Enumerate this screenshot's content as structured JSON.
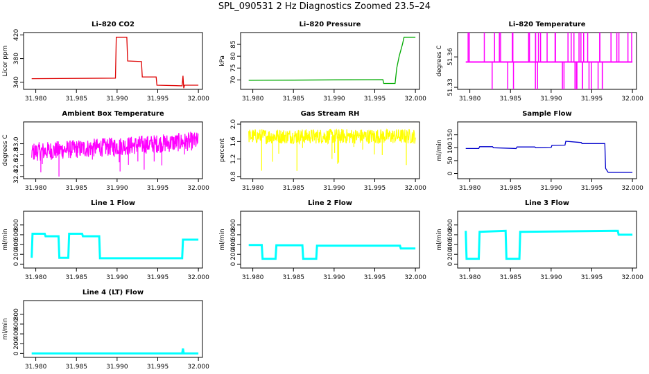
{
  "figure": {
    "title": "SPL_090531  2 Hz Diagnostics Zoomed 23.5–24"
  },
  "chart_data": [
    {
      "type": "line",
      "title": "Li–820 CO2",
      "ylabel": "Licor ppm",
      "color": "#dd0000",
      "xlim": [
        31.9785,
        32.0005
      ],
      "ylim": [
        328,
        424
      ],
      "xticks": [
        "31.980",
        "31.985",
        "31.990",
        "31.995",
        "32.000"
      ],
      "xtick_values": [
        31.98,
        31.985,
        31.99,
        31.995,
        32.0
      ],
      "yticks": [
        "340",
        "380",
        "420"
      ],
      "ytick_values": [
        340,
        380,
        420
      ],
      "series": [
        {
          "x": [
            31.9795,
            31.9898,
            31.9899,
            31.9912,
            31.9913,
            31.993,
            31.9931,
            31.9948,
            31.9949,
            31.998,
            31.9981,
            31.9982,
            31.9983,
            32.0
          ],
          "y": [
            346,
            347,
            416,
            416,
            376,
            375,
            349,
            349,
            335,
            334,
            351,
            330,
            335,
            335
          ]
        }
      ]
    },
    {
      "type": "line",
      "title": "Li–820 Pressure",
      "ylabel": "kPa",
      "color": "#00aa00",
      "xlim": [
        31.9785,
        32.0005
      ],
      "ylim": [
        66,
        90
      ],
      "xticks": [
        "31.980",
        "31.985",
        "31.990",
        "31.995",
        "32.000"
      ],
      "xtick_values": [
        31.98,
        31.985,
        31.99,
        31.995,
        32.0
      ],
      "yticks": [
        "70",
        "75",
        "80",
        "85"
      ],
      "ytick_values": [
        70,
        75,
        80,
        85
      ],
      "series": [
        {
          "x": [
            31.9795,
            31.985,
            31.99,
            31.996,
            31.9961,
            31.9975,
            31.9977,
            31.998,
            31.9984,
            31.9986,
            32.0
          ],
          "y": [
            69.8,
            69.9,
            70.0,
            70.1,
            68.5,
            68.5,
            75,
            80,
            85,
            88,
            88
          ]
        }
      ]
    },
    {
      "type": "line",
      "title": "Li–820 Temperature",
      "ylabel": "degrees C",
      "color": "#ff00ff",
      "xlim": [
        31.9785,
        32.0005
      ],
      "ylim": [
        51.328,
        51.384
      ],
      "xticks": [
        "31.980",
        "31.985",
        "31.990",
        "31.995",
        "32.000"
      ],
      "xtick_values": [
        31.98,
        31.985,
        31.99,
        31.995,
        32.0
      ],
      "yticks": [
        "51.33",
        "51.36"
      ],
      "ytick_values": [
        51.33,
        51.36
      ],
      "series": [
        {
          "x": [
            31.9795,
            32.0
          ],
          "y": [
            51.355,
            51.355
          ]
        }
      ]
    },
    {
      "type": "line",
      "title": "Ambient Box Temperature",
      "ylabel": "degrees C",
      "color": "#ff00ff",
      "xlim": [
        31.9785,
        32.0005
      ],
      "ylim": [
        32.36,
        33.4
      ],
      "xticks": [
        "31.980",
        "31.985",
        "31.990",
        "31.995",
        "32.000"
      ],
      "xtick_values": [
        31.98,
        31.985,
        31.99,
        31.995,
        32.0
      ],
      "yticks": [
        "32.4",
        "32.6",
        "32.8",
        "33.0"
      ],
      "ytick_values": [
        32.4,
        32.6,
        32.8,
        33.0
      ],
      "series": [
        {
          "x": [
            31.9795,
            31.985,
            31.99,
            31.995,
            32.0
          ],
          "y": [
            32.85,
            32.9,
            32.95,
            33.0,
            33.05
          ]
        }
      ]
    },
    {
      "type": "line",
      "title": "Gas Stream RH",
      "ylabel": "percent",
      "color": "#ffff00",
      "xlim": [
        31.9785,
        32.0005
      ],
      "ylim": [
        0.75,
        2.05
      ],
      "xticks": [
        "31.980",
        "31.985",
        "31.990",
        "31.995",
        "32.000"
      ],
      "xtick_values": [
        31.98,
        31.985,
        31.99,
        31.995,
        32.0
      ],
      "yticks": [
        "0.8",
        "1.2",
        "1.6",
        "2.0"
      ],
      "ytick_values": [
        0.8,
        1.2,
        1.6,
        2.0
      ],
      "series": [
        {
          "x": [
            31.9795,
            31.985,
            31.99,
            31.995,
            32.0
          ],
          "y": [
            1.72,
            1.72,
            1.72,
            1.72,
            1.72
          ]
        }
      ]
    },
    {
      "type": "line",
      "title": "Sample Flow",
      "ylabel": "ml/min",
      "color": "#0000cc",
      "xlim": [
        31.9785,
        32.0005
      ],
      "ylim": [
        -20,
        200
      ],
      "xticks": [
        "31.980",
        "31.985",
        "31.990",
        "31.995",
        "32.000"
      ],
      "xtick_values": [
        31.98,
        31.985,
        31.99,
        31.995,
        32.0
      ],
      "yticks": [
        "0",
        "50",
        "100",
        "150"
      ],
      "ytick_values": [
        0,
        50,
        100,
        150
      ],
      "series": [
        {
          "x": [
            31.9795,
            31.9811,
            31.9812,
            31.9828,
            31.9829,
            31.9857,
            31.9858,
            31.988,
            31.9881,
            31.99,
            31.9901,
            31.9917,
            31.9918,
            31.9937,
            31.9938,
            31.9966,
            31.9967,
            31.997,
            32.0
          ],
          "y": [
            97,
            97,
            104,
            104,
            100,
            97,
            103,
            103,
            100,
            101,
            109,
            110,
            125,
            120,
            116,
            116,
            20,
            5,
            5
          ]
        }
      ]
    },
    {
      "type": "line",
      "title": "Line 1 Flow",
      "ylabel": "ml/min",
      "color": "#00ffff",
      "xlim": [
        31.9785,
        32.0005
      ],
      "ylim": [
        -80,
        1080
      ],
      "xticks": [
        "31.980",
        "31.985",
        "31.990",
        "31.995",
        "32.000"
      ],
      "xtick_values": [
        31.98,
        31.985,
        31.99,
        31.995,
        32.0
      ],
      "yticks": [
        "0",
        "200",
        "400",
        "600",
        "800"
      ],
      "ytick_values": [
        0,
        200,
        400,
        600,
        800
      ],
      "series": [
        {
          "x": [
            31.9795,
            31.9796,
            31.9811,
            31.9812,
            31.9828,
            31.9829,
            31.984,
            31.9841,
            31.9857,
            31.9858,
            31.9878,
            31.9879,
            31.998,
            31.9981,
            32.0
          ],
          "y": [
            130,
            620,
            620,
            570,
            570,
            130,
            130,
            620,
            620,
            570,
            570,
            120,
            120,
            500,
            500
          ]
        }
      ]
    },
    {
      "type": "line",
      "title": "Line 2 Flow",
      "ylabel": "ml/min",
      "color": "#00ffff",
      "xlim": [
        31.9785,
        32.0005
      ],
      "ylim": [
        -80,
        1080
      ],
      "xticks": [
        "31.980",
        "31.985",
        "31.990",
        "31.995",
        "32.000"
      ],
      "xtick_values": [
        31.98,
        31.985,
        31.99,
        31.995,
        32.0
      ],
      "yticks": [
        "0",
        "200",
        "400",
        "600",
        "800"
      ],
      "ytick_values": [
        0,
        200,
        400,
        600,
        800
      ],
      "series": [
        {
          "x": [
            31.9795,
            31.9811,
            31.9812,
            31.9828,
            31.9829,
            31.9861,
            31.9862,
            31.9878,
            31.9879,
            31.9981,
            31.9982,
            32.0
          ],
          "y": [
            390,
            390,
            110,
            110,
            385,
            385,
            110,
            110,
            375,
            375,
            320,
            320
          ]
        }
      ]
    },
    {
      "type": "line",
      "title": "Line 3 Flow",
      "ylabel": "ml/min",
      "color": "#00ffff",
      "xlim": [
        31.9785,
        32.0005
      ],
      "ylim": [
        -80,
        1080
      ],
      "xticks": [
        "31.980",
        "31.985",
        "31.990",
        "31.995",
        "32.000"
      ],
      "xtick_values": [
        31.98,
        31.985,
        31.99,
        31.995,
        32.0
      ],
      "yticks": [
        "0",
        "200",
        "400",
        "600",
        "800"
      ],
      "ytick_values": [
        0,
        200,
        400,
        600,
        800
      ],
      "series": [
        {
          "x": [
            31.9795,
            31.9796,
            31.9811,
            31.9812,
            31.9844,
            31.9845,
            31.9861,
            31.9862,
            31.9982,
            31.9983,
            32.0
          ],
          "y": [
            680,
            110,
            110,
            660,
            680,
            110,
            110,
            660,
            680,
            600,
            600
          ]
        }
      ]
    },
    {
      "type": "line",
      "title": "Line 4 (LT) Flow",
      "ylabel": "ml/min",
      "color": "#00ffff",
      "xlim": [
        31.9785,
        32.0005
      ],
      "ylim": [
        -80,
        1080
      ],
      "xticks": [
        "31.980",
        "31.985",
        "31.990",
        "31.995",
        "32.000"
      ],
      "xtick_values": [
        31.98,
        31.985,
        31.99,
        31.995,
        32.0
      ],
      "yticks": [
        "0",
        "200",
        "400",
        "600",
        "800"
      ],
      "ytick_values": [
        0,
        200,
        400,
        600,
        800
      ],
      "series": [
        {
          "x": [
            31.9795,
            31.998,
            31.9981,
            31.9982,
            32.0
          ],
          "y": [
            0,
            0,
            100,
            0,
            0
          ]
        }
      ]
    }
  ]
}
